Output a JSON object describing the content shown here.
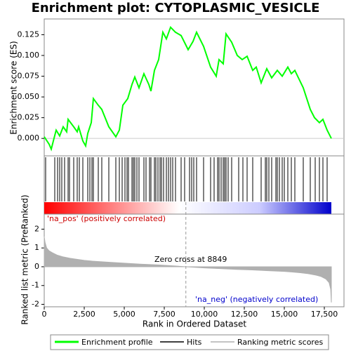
{
  "chart_data": [
    {
      "type": "line",
      "title": "Enrichment plot: CYTOPLASMIC_VESICLE",
      "ylabel": "Enrichment score (ES)",
      "xlim": [
        0,
        18728
      ],
      "ylim": [
        -0.021,
        0.144
      ],
      "yticks": [
        {
          "value": 0,
          "label": "0.000"
        },
        {
          "value": 0.025,
          "label": "0.025"
        },
        {
          "value": 0.05,
          "label": "0.050"
        },
        {
          "value": 0.075,
          "label": "0.075"
        },
        {
          "value": 0.1,
          "label": "0.100"
        },
        {
          "value": 0.125,
          "label": "0.125"
        }
      ],
      "x": [
        0,
        307,
        439,
        570,
        746,
        965,
        1184,
        1403,
        1491,
        1842,
        2061,
        2149,
        2412,
        2588,
        2719,
        2939,
        3070,
        3377,
        3596,
        4035,
        4474,
        4693,
        4912,
        5219,
        5482,
        5658,
        5921,
        6228,
        6535,
        6667,
        6886,
        7149,
        7412,
        7631,
        7894,
        8201,
        8552,
        8991,
        9298,
        9517,
        9956,
        10394,
        10745,
        10921,
        11184,
        11359,
        11710,
        12061,
        12368,
        12675,
        13026,
        13246,
        13553,
        13904,
        14211,
        14562,
        14869,
        15219,
        15439,
        15658,
        16184,
        16623,
        16886,
        17193,
        17412,
        17675,
        17938
      ],
      "series": [
        {
          "name": "Enrichment profile",
          "color": "#00ff00",
          "values": [
            0.002,
            -0.007,
            -0.013,
            -0.003,
            0.01,
            0.003,
            0.014,
            0.008,
            0.023,
            0.014,
            0.008,
            0.014,
            -0.003,
            -0.009,
            0.006,
            0.019,
            0.048,
            0.04,
            0.035,
            0.014,
            0.002,
            0.01,
            0.04,
            0.048,
            0.065,
            0.074,
            0.061,
            0.078,
            0.065,
            0.057,
            0.082,
            0.095,
            0.128,
            0.12,
            0.134,
            0.128,
            0.124,
            0.107,
            0.117,
            0.128,
            0.111,
            0.086,
            0.075,
            0.095,
            0.09,
            0.126,
            0.116,
            0.1,
            0.095,
            0.099,
            0.082,
            0.086,
            0.067,
            0.084,
            0.073,
            0.082,
            0.075,
            0.086,
            0.078,
            0.082,
            0.061,
            0.035,
            0.025,
            0.019,
            0.023,
            0.01,
            0.0
          ]
        }
      ]
    },
    {
      "type": "hits",
      "name": "Hits",
      "color": "#000000",
      "xlim": [
        0,
        18728
      ],
      "x": [
        88,
        658,
        833,
        965,
        1096,
        1272,
        1491,
        1579,
        1842,
        2061,
        2193,
        2412,
        2719,
        2851,
        2983,
        3070,
        3377,
        3596,
        4035,
        4474,
        4693,
        4868,
        5044,
        5175,
        5263,
        5483,
        5570,
        5658,
        5790,
        5921,
        6228,
        6360,
        6579,
        6667,
        6886,
        6974,
        7105,
        7237,
        7325,
        7456,
        7632,
        7763,
        7895,
        8026,
        8201,
        8552,
        8772,
        9079,
        9210,
        9342,
        9517,
        9956,
        10395,
        10614,
        10833,
        10921,
        11053,
        11184,
        11272,
        11360,
        11491,
        11710,
        12149,
        12412,
        12676,
        13026,
        13553,
        13816,
        13904,
        14035,
        14211,
        14474,
        14562,
        14693,
        14869,
        15000,
        15219,
        15439,
        15658,
        16184,
        16623,
        16930,
        17193,
        17412,
        17675
      ]
    },
    {
      "type": "area",
      "ylabel": "Ranked list metric (PreRanked)",
      "xlabel": "Rank in Ordered Dataset",
      "xlim": [
        0,
        18728
      ],
      "ylim": [
        -2.13,
        2.8
      ],
      "xticks": [
        0,
        {
          "value": 2500,
          "label": "2,500"
        },
        {
          "value": 5000,
          "label": "5,000"
        },
        {
          "value": 7500,
          "label": "7,500"
        },
        {
          "value": 10000,
          "label": "10,000"
        },
        {
          "value": 12500,
          "label": "12,500"
        },
        {
          "value": 15000,
          "label": "15,000"
        },
        {
          "value": 17500,
          "label": "17,500"
        }
      ],
      "yticks": [
        -2,
        -1,
        0,
        1,
        2
      ],
      "x": [
        0,
        50,
        150,
        300,
        500,
        800,
        1200,
        1600,
        2000,
        2500,
        3000,
        4000,
        5000,
        6000,
        7000,
        8000,
        8849,
        10000,
        11000,
        12000,
        13000,
        14000,
        15000,
        15500,
        16000,
        16500,
        17000,
        17300,
        17600,
        17800,
        17900,
        17938
      ],
      "series": [
        {
          "name": "Ranking metric scores",
          "color": "#b0b0b0",
          "values": [
            1.6,
            1.3,
            1.0,
            0.85,
            0.75,
            0.62,
            0.52,
            0.45,
            0.4,
            0.34,
            0.3,
            0.24,
            0.19,
            0.14,
            0.1,
            0.05,
            0,
            -0.06,
            -0.1,
            -0.14,
            -0.17,
            -0.21,
            -0.25,
            -0.28,
            -0.32,
            -0.37,
            -0.45,
            -0.52,
            -0.65,
            -0.85,
            -1.2,
            -1.9
          ]
        }
      ],
      "annotations": [
        "'na_pos' (positively correlated)",
        "Zero cross at 8849",
        "'na_neg' (negatively correlated)"
      ],
      "zero_cross": 8849
    }
  ]
}
